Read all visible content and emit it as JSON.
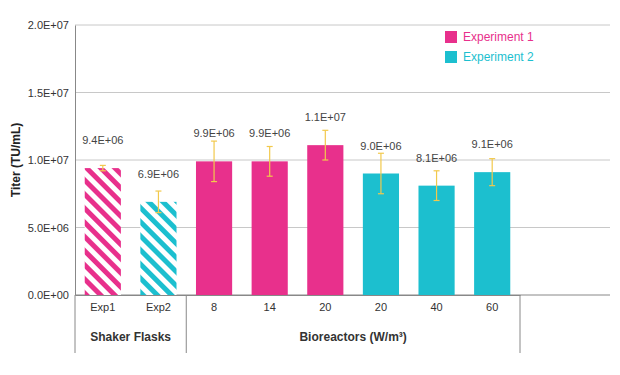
{
  "chart_data": {
    "type": "bar",
    "y_label": "Titer (TU/mL)",
    "groups": [
      {
        "label": "Shaker Flasks",
        "categories": [
          "Exp1",
          "Exp2"
        ]
      },
      {
        "label": "Bioreactors (W/m³)",
        "categories": [
          "8",
          "14",
          "20",
          "20",
          "40",
          "60"
        ]
      }
    ],
    "series": [
      {
        "name": "Experiment 1",
        "color": "#e8308c",
        "values": [
          9400000,
          null,
          9900000,
          9900000,
          11100000,
          null,
          null,
          null
        ],
        "value_labels": [
          "9.4E+06",
          null,
          "9.9E+06",
          "9.9E+06",
          "1.1E+07",
          null,
          null,
          null
        ],
        "errors": [
          200000,
          null,
          1500000,
          1100000,
          1100000,
          null,
          null,
          null
        ]
      },
      {
        "name": "Experiment 2",
        "color": "#1cbfcf",
        "values": [
          null,
          6900000,
          null,
          null,
          null,
          9000000,
          8100000,
          9100000
        ],
        "value_labels": [
          null,
          "6.9E+06",
          null,
          null,
          null,
          "9.0E+06",
          "8.1E+06",
          "9.1E+06"
        ],
        "errors": [
          null,
          800000,
          null,
          null,
          null,
          1500000,
          1100000,
          1000000
        ]
      }
    ],
    "ylim": [
      0,
      20000000
    ],
    "yticks": [
      {
        "value": 0,
        "label": "0.0E+00"
      },
      {
        "value": 5000000,
        "label": "5.0E+06"
      },
      {
        "value": 10000000,
        "label": "1.0E+07"
      },
      {
        "value": 15000000,
        "label": "1.5E+07"
      },
      {
        "value": 20000000,
        "label": "2.0E+07"
      }
    ],
    "grid": true,
    "legend": "top-right",
    "data_labels": true
  }
}
